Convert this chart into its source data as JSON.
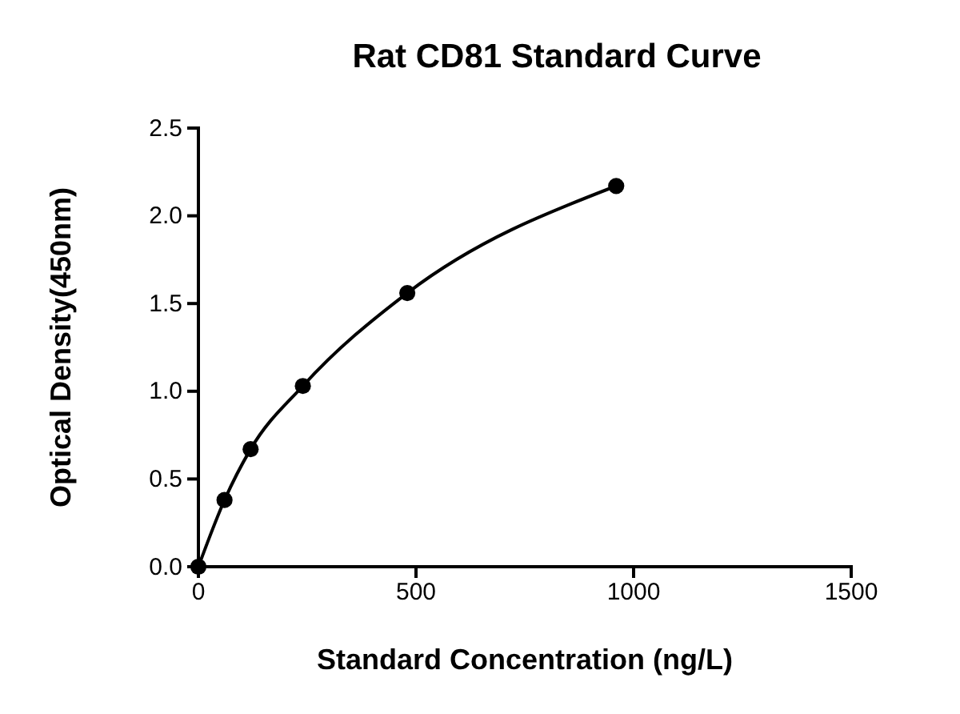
{
  "chart_data": {
    "type": "line",
    "title": "Rat CD81 Standard Curve",
    "xlabel": "Standard Concentration (ng/L)",
    "ylabel": "Optical Density(450nm)",
    "x": [
      0,
      60,
      120,
      240,
      480,
      960
    ],
    "series": [
      {
        "color": "#000000",
        "values": [
          0,
          0.38,
          0.67,
          1.03,
          1.56,
          2.17
        ]
      }
    ],
    "xlim": [
      0,
      1500
    ],
    "xticks": [
      0,
      500,
      1000,
      1500
    ],
    "ylim": [
      0,
      2.5
    ],
    "yticks": [
      {
        "value": 0,
        "label": "0.0"
      },
      {
        "value": 0.5,
        "label": "0.5"
      },
      {
        "value": 1,
        "label": "1.0"
      },
      {
        "value": 1.5,
        "label": "1.5"
      },
      {
        "value": 2,
        "label": "2.0"
      },
      {
        "value": 2.5,
        "label": "2.5"
      }
    ],
    "marker": "circle",
    "grid": false
  }
}
